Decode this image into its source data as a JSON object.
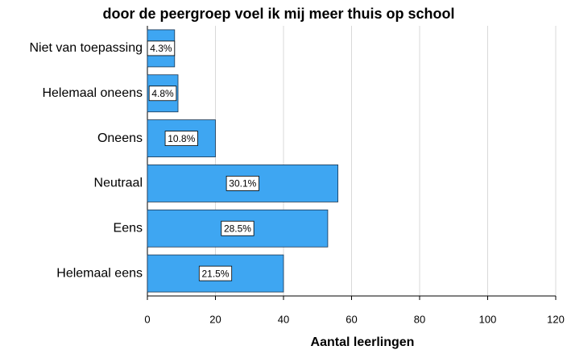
{
  "chart_data": {
    "type": "barh",
    "title": "door de peergroep voel ik mij meer thuis op school",
    "xlabel": "Aantal leerlingen",
    "categories": [
      "Niet van toepassing",
      "Helemaal oneens",
      "Oneens",
      "Neutraal",
      "Eens",
      "Helemaal eens"
    ],
    "values": [
      8,
      9,
      20,
      56,
      53,
      40
    ],
    "percent_labels": [
      "4.3%",
      "4.8%",
      "10.8%",
      "30.1%",
      "28.5%",
      "21.5%"
    ],
    "color": "#3ea6f2",
    "xlim": [
      0,
      120
    ],
    "xticks": [
      0,
      20,
      40,
      60,
      80,
      100,
      120
    ],
    "grid": true
  }
}
